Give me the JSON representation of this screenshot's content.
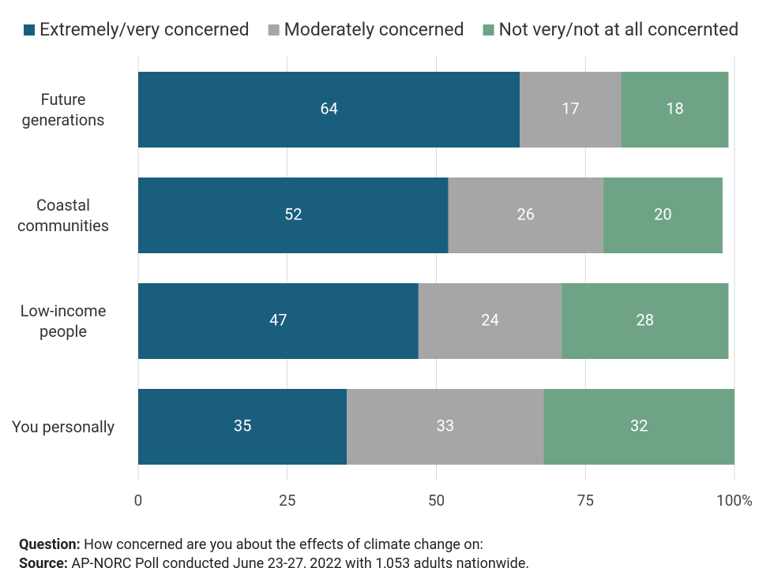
{
  "chart_data": {
    "type": "stacked-bar-horizontal",
    "categories": [
      "Future generations",
      "Coastal communities",
      "Low-income people",
      "You personally"
    ],
    "series": [
      {
        "name": "Extremely/very concerned",
        "color": "#1a5e7e",
        "values": [
          64,
          52,
          47,
          35
        ]
      },
      {
        "name": "Moderately concerned",
        "color": "#a6a6a6",
        "values": [
          17,
          26,
          24,
          33
        ]
      },
      {
        "name": "Not very/not at all concernted",
        "color": "#6fa386",
        "values": [
          18,
          20,
          28,
          32
        ]
      }
    ],
    "xlim": [
      0,
      100
    ],
    "xticks": [
      0,
      25,
      50,
      75,
      {
        "value": 100,
        "label": "100%"
      }
    ],
    "grid": true,
    "legend": "top",
    "question_label": "Question:",
    "question": "How concerned are you about the effects of climate change on:",
    "source_label": "Source:",
    "source": "AP-NORC Poll conducted June 23-27, 2022 with 1,053 adults nationwide."
  }
}
